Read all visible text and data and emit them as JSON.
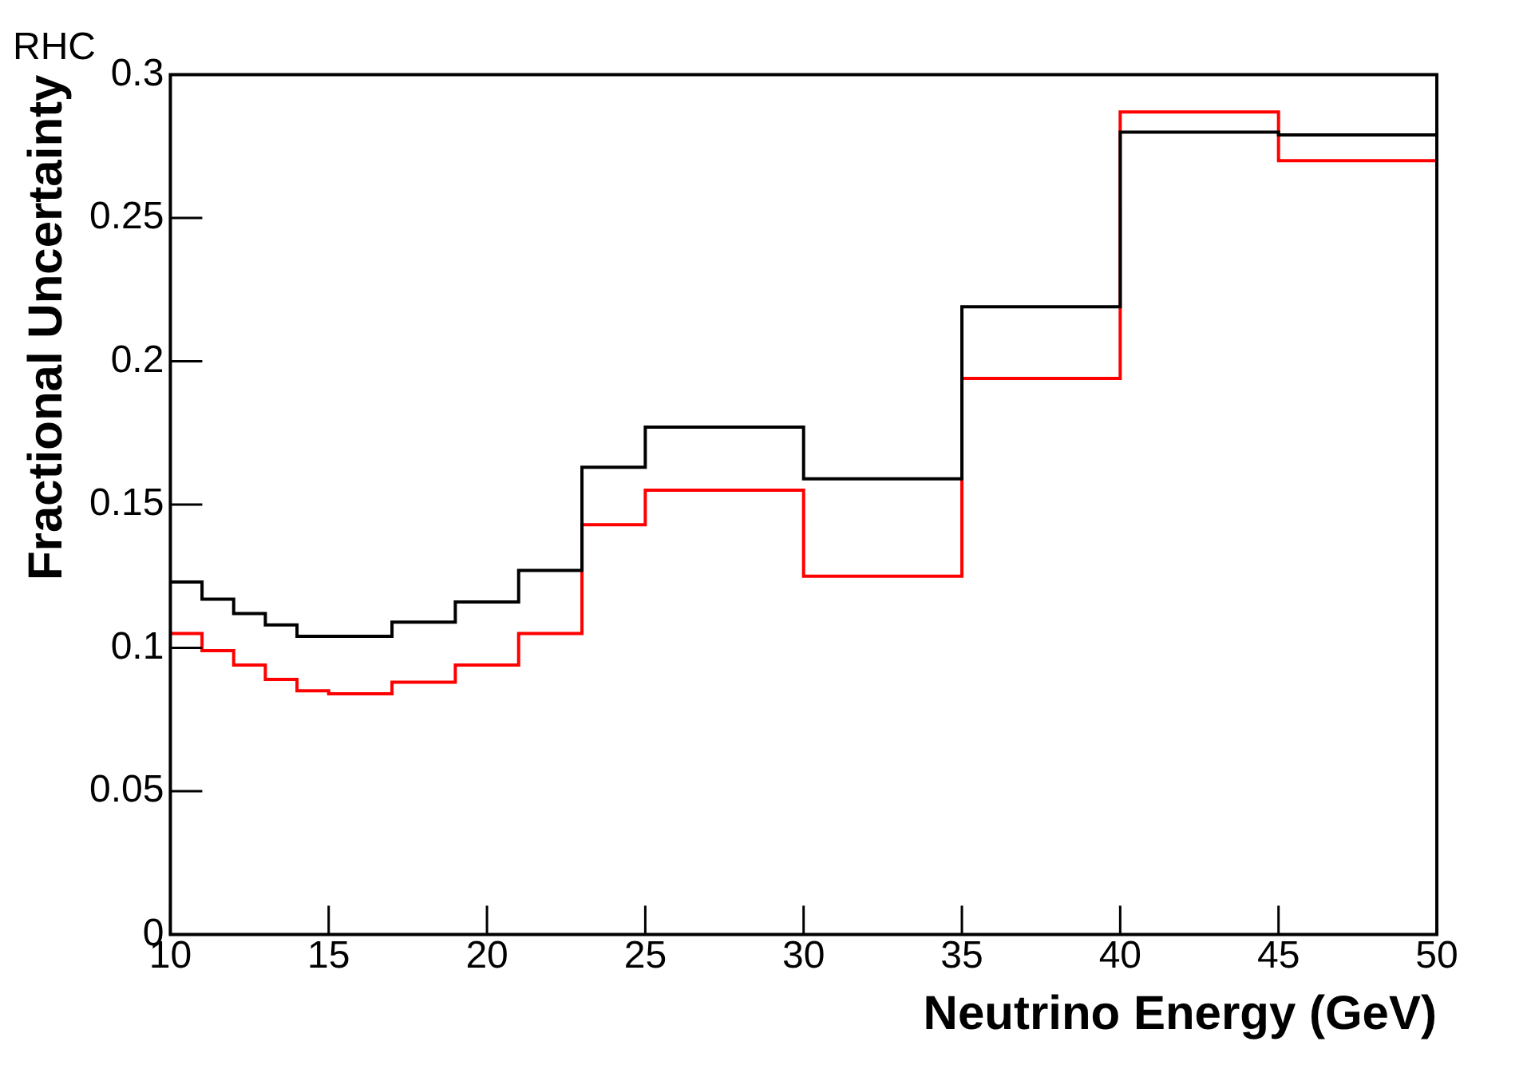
{
  "chart_data": {
    "type": "histogram",
    "title": "RHC",
    "xlabel": "Neutrino Energy (GeV)",
    "ylabel": "Fractional Uncertainty",
    "bins": [
      10,
      11,
      12,
      13,
      14,
      15,
      17,
      19,
      21,
      23,
      25,
      30,
      35,
      40,
      45,
      50
    ],
    "series": [
      {
        "color": "#000000",
        "values": [
          0.123,
          0.117,
          0.112,
          0.108,
          0.104,
          0.104,
          0.109,
          0.116,
          0.127,
          0.163,
          0.177,
          0.159,
          0.219,
          0.28,
          0.279
        ]
      },
      {
        "color": "#ff0000",
        "values": [
          0.105,
          0.099,
          0.094,
          0.089,
          0.085,
          0.084,
          0.088,
          0.094,
          0.105,
          0.143,
          0.155,
          0.125,
          0.194,
          0.287,
          0.27
        ]
      }
    ],
    "xlim": [
      10,
      50
    ],
    "xticks": [
      10,
      15,
      20,
      25,
      30,
      35,
      40,
      45,
      50
    ],
    "ylim": [
      0,
      0.3
    ],
    "yticks": [
      0,
      0.05,
      0.1,
      0.15,
      0.2,
      0.25,
      0.3
    ],
    "grid": false,
    "legend": false
  }
}
